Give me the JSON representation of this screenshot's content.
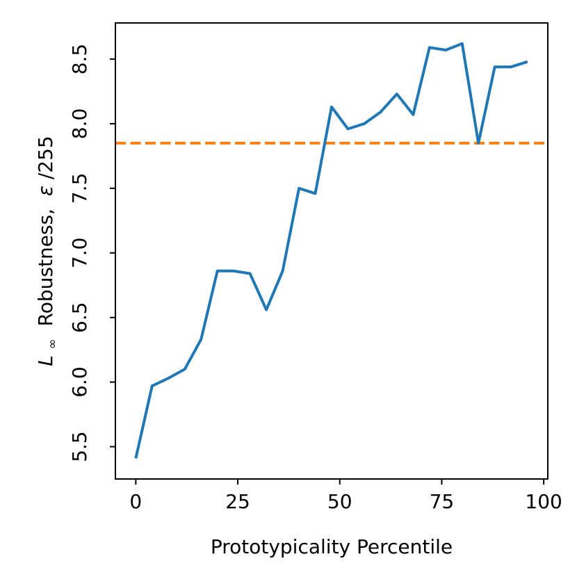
{
  "chart_data": {
    "type": "line",
    "xlabel": "Prototypicality Percentile",
    "ylabel_prefix": "L",
    "ylabel_subscript": "∞",
    "ylabel_middle": " Robustness, ",
    "ylabel_epsilon": "ε",
    "ylabel_suffix": "/255",
    "xlim": [
      -5,
      101
    ],
    "ylim": [
      5.25,
      8.78
    ],
    "xticks": [
      0,
      25,
      50,
      75,
      100
    ],
    "xtick_labels": [
      "0",
      "25",
      "50",
      "75",
      "100"
    ],
    "yticks": [
      5.5,
      6.0,
      6.5,
      7.0,
      7.5,
      8.0,
      8.5
    ],
    "ytick_labels": [
      "5.5",
      "6.0",
      "6.5",
      "7.0",
      "7.5",
      "8.0",
      "8.5"
    ],
    "grid": false,
    "series": [
      {
        "color": "#1f77b4",
        "style": "solid",
        "x": [
          0,
          4,
          8,
          12,
          16,
          20,
          24,
          28,
          32,
          36,
          40,
          44,
          48,
          52,
          56,
          60,
          64,
          68,
          72,
          76,
          80,
          84,
          88,
          92,
          96
        ],
        "y": [
          5.41,
          5.97,
          6.03,
          6.1,
          6.33,
          6.86,
          6.86,
          6.84,
          6.56,
          6.86,
          7.5,
          7.46,
          8.13,
          7.96,
          8.0,
          8.09,
          8.23,
          8.07,
          8.59,
          8.57,
          8.62,
          7.85,
          8.44,
          8.44,
          8.48
        ]
      }
    ],
    "hlines": [
      {
        "y": 7.85,
        "color": "#ff7f0e",
        "style": "dashed"
      }
    ]
  }
}
